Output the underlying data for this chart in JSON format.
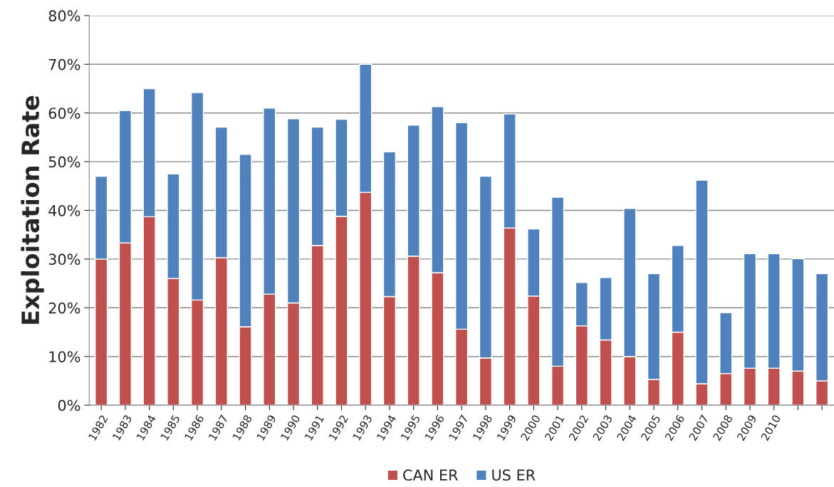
{
  "chart_data": {
    "type": "bar",
    "stacked": true,
    "ylabel": "Exploitation Rate",
    "categories": [
      "1982",
      "1983",
      "1984",
      "1985",
      "1986",
      "1987",
      "1988",
      "1989",
      "1990",
      "1991",
      "1992",
      "1993",
      "1994",
      "1995",
      "1996",
      "1997",
      "1998",
      "1999",
      "2000",
      "2001",
      "2002",
      "2003",
      "2004",
      "2005",
      "2006",
      "2007",
      "2008",
      "2009",
      "2010",
      null,
      null
    ],
    "series": [
      {
        "name": "CAN ER",
        "color": "#c0504d",
        "values": [
          30,
          33.3,
          38.7,
          26,
          21.6,
          30.3,
          16.1,
          22.8,
          21,
          32.8,
          38.8,
          43.7,
          22.3,
          30.6,
          27.2,
          15.6,
          9.7,
          36.4,
          22.4,
          8,
          16.3,
          13.4,
          10,
          5.3,
          15,
          4.4,
          6.5,
          7.6,
          7.6,
          7,
          5
        ]
      },
      {
        "name": "US ER",
        "color": "#4f81bd",
        "values": [
          17,
          27.2,
          26.3,
          21.5,
          42.6,
          26.8,
          35.4,
          38.2,
          37.8,
          24.3,
          19.9,
          26.3,
          29.7,
          26.9,
          34.1,
          42.4,
          37.3,
          23.4,
          13.8,
          34.7,
          8.9,
          12.8,
          30.4,
          21.7,
          17.8,
          41.8,
          12.5,
          23.5,
          23.5,
          23.1,
          22
        ]
      }
    ],
    "ylim": [
      0,
      80
    ],
    "yticks": [
      {
        "value": 0,
        "label": "0%"
      },
      {
        "value": 10,
        "label": "10%"
      },
      {
        "value": 20,
        "label": "20%"
      },
      {
        "value": 30,
        "label": "30%"
      },
      {
        "value": 40,
        "label": "40%"
      },
      {
        "value": 50,
        "label": "50%"
      },
      {
        "value": 60,
        "label": "60%"
      },
      {
        "value": 70,
        "label": "70%"
      },
      {
        "value": 80,
        "label": "80%"
      }
    ],
    "grid": "y",
    "legend": "bottom"
  }
}
